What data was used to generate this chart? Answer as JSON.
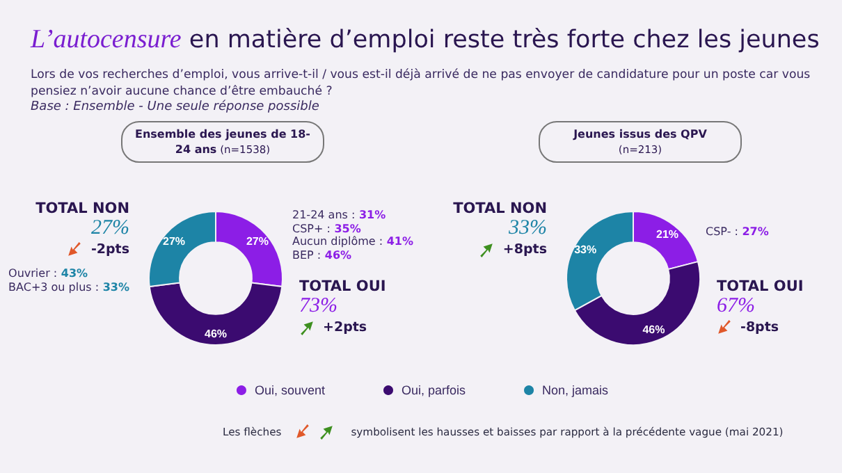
{
  "chart_data": [
    {
      "type": "other",
      "title": "L’autocensure en matière d’emploi reste très forte chez les jeunes",
      "subtitle": "Lors de vos recherches d’emploi,  vous arrive-t-il / vous est-il déjà arrivé de ne pas envoyer de candidature pour un poste car vous pensiez n’avoir aucune chance d’être embauché ?",
      "annotations": [
        "Base : Ensemble - Une seule réponse possible",
        "Les flèches",
        "symbolisent les hausses et baisses par rapport à la précédente vague (mai 2021)"
      ]
    },
    {
      "type": "donut",
      "title": "Ensemble des jeunes de 18-24 ans",
      "subtitle": "(n=1538)",
      "categories": [
        "Oui, souvent",
        "Oui, parfois",
        "Non, jamais"
      ],
      "values": [
        27,
        46,
        27
      ],
      "value_labels": [
        "27%",
        "46%",
        "27%"
      ],
      "colors": [
        "#8c1ee6",
        "#3b0b70",
        "#1d84a6"
      ],
      "legend": "bottom",
      "annotations": [
        "TOTAL NON",
        "27%",
        "-2pts",
        "Ouvrier : 43%\nBAC+3 ou plus : 33%",
        "21-24 ans : 31%\nCSP+ : 35%\nAucun diplôme : 41%\nBEP : 46%",
        "TOTAL OUI",
        "73%",
        "+2pts"
      ]
    },
    {
      "type": "donut",
      "title": "Jeunes issus des QPV",
      "subtitle": "(n=213)",
      "categories": [
        null,
        null,
        null
      ],
      "values": [
        21,
        46,
        33
      ],
      "value_labels": [
        "21%",
        "46%",
        "33%"
      ],
      "colors": [
        "#8c1ee6",
        "#3b0b70",
        "#1d84a6"
      ],
      "annotations": [
        "TOTAL NON",
        "33%",
        "+8pts",
        "CSP- : 27%",
        "TOTAL OUI",
        "67%",
        "-8pts"
      ]
    }
  ]
}
